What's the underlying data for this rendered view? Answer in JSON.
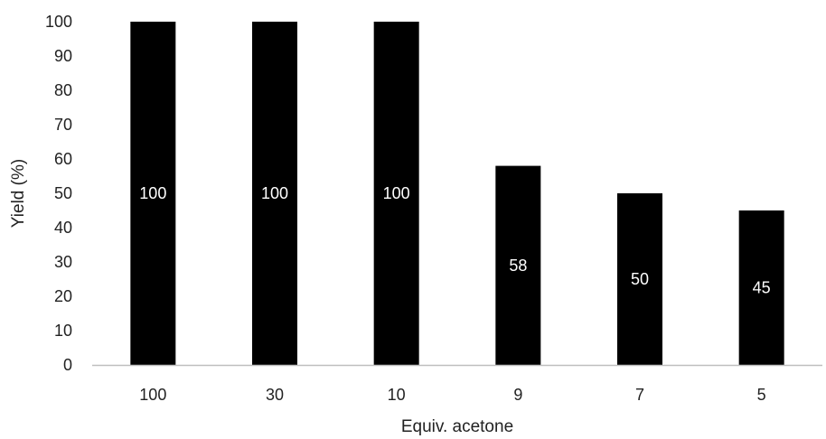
{
  "chart_data": {
    "type": "bar",
    "categories": [
      "100",
      "30",
      "10",
      "9",
      "7",
      "5"
    ],
    "values": [
      100,
      100,
      100,
      58,
      50,
      45
    ],
    "data_labels": [
      "100",
      "100",
      "100",
      "58",
      "50",
      "45"
    ],
    "title": "",
    "xlabel": "Equiv. acetone",
    "ylabel": "Yield (%)",
    "ylim": [
      0,
      100
    ],
    "yticks": [
      "0",
      "10",
      "20",
      "30",
      "40",
      "50",
      "60",
      "70",
      "80",
      "90",
      "100"
    ],
    "grid": false,
    "legend": "none",
    "colors": {
      "bar": "#000000",
      "axis": "#bfbfbf",
      "text": "#222222",
      "label": "#ffffff"
    }
  }
}
